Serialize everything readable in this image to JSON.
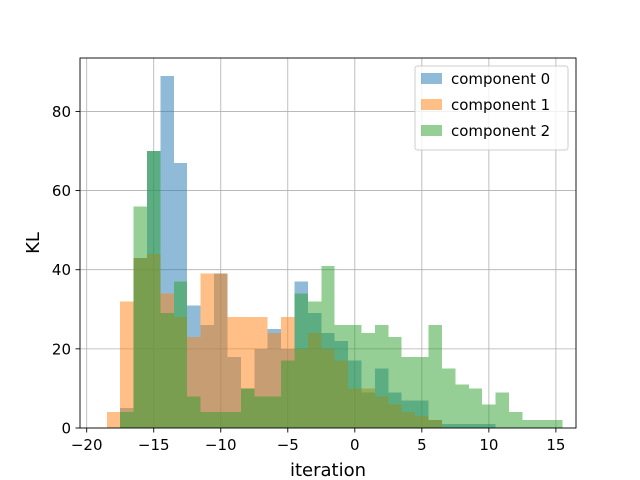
{
  "chart_data": {
    "type": "histogram",
    "title": "",
    "xlabel": "iteration",
    "ylabel": "KL",
    "xlim": [
      -20.5,
      16.5
    ],
    "ylim": [
      0,
      93.5
    ],
    "xticks": [
      -20,
      -15,
      -10,
      -5,
      0,
      5,
      10,
      15
    ],
    "xtick_labels": [
      "−20",
      "−15",
      "−10",
      "−5",
      "0",
      "5",
      "10",
      "15"
    ],
    "yticks": [
      0,
      20,
      40,
      60,
      80
    ],
    "ytick_labels": [
      "0",
      "20",
      "40",
      "60",
      "80"
    ],
    "grid": true,
    "legend_position": "top-right",
    "series": [
      {
        "name": "component 0",
        "color": "#1f77b4",
        "opacity": 0.5,
        "bins": [
          [
            -17.5,
            -16.5,
            5
          ],
          [
            -16.5,
            -15.5,
            43
          ],
          [
            -15.5,
            -14.5,
            70
          ],
          [
            -14.5,
            -13.5,
            89
          ],
          [
            -13.5,
            -12.5,
            67
          ],
          [
            -12.5,
            -11.5,
            31
          ],
          [
            -11.5,
            -10.5,
            26
          ],
          [
            -10.5,
            -9.5,
            39
          ],
          [
            -9.5,
            -8.5,
            18
          ],
          [
            -8.5,
            -7.5,
            10
          ],
          [
            -7.5,
            -6.5,
            20
          ],
          [
            -6.5,
            -5.5,
            25
          ],
          [
            -5.5,
            -4.5,
            20
          ],
          [
            -4.5,
            -3.5,
            37
          ],
          [
            -3.5,
            -2.5,
            29
          ],
          [
            -2.5,
            -1.5,
            24
          ],
          [
            -1.5,
            -0.5,
            22
          ],
          [
            -0.5,
            0.5,
            17
          ],
          [
            0.5,
            1.5,
            9
          ],
          [
            1.5,
            2.5,
            15
          ],
          [
            2.5,
            3.5,
            9
          ],
          [
            3.5,
            4.5,
            7
          ],
          [
            4.5,
            5.5,
            7
          ],
          [
            5.5,
            6.5,
            2
          ],
          [
            6.5,
            7.5,
            1
          ],
          [
            7.5,
            8.5,
            1
          ],
          [
            8.5,
            9.5,
            1
          ],
          [
            9.5,
            10.5,
            1
          ]
        ]
      },
      {
        "name": "component 1",
        "color": "#ff7f0e",
        "opacity": 0.5,
        "bins": [
          [
            -18.5,
            -17.5,
            4
          ],
          [
            -17.5,
            -16.5,
            32
          ],
          [
            -16.5,
            -15.5,
            43
          ],
          [
            -15.5,
            -14.5,
            44
          ],
          [
            -14.5,
            -13.5,
            34
          ],
          [
            -13.5,
            -12.5,
            28
          ],
          [
            -12.5,
            -11.5,
            23
          ],
          [
            -11.5,
            -10.5,
            39
          ],
          [
            -10.5,
            -9.5,
            39
          ],
          [
            -9.5,
            -8.5,
            28
          ],
          [
            -8.5,
            -7.5,
            28
          ],
          [
            -7.5,
            -6.5,
            28
          ],
          [
            -6.5,
            -5.5,
            24
          ],
          [
            -5.5,
            -4.5,
            28
          ],
          [
            -4.5,
            -3.5,
            20
          ],
          [
            -3.5,
            -2.5,
            24
          ],
          [
            -2.5,
            -1.5,
            20
          ],
          [
            -1.5,
            -0.5,
            17
          ],
          [
            -0.5,
            0.5,
            10
          ],
          [
            0.5,
            1.5,
            10
          ],
          [
            1.5,
            2.5,
            8
          ],
          [
            2.5,
            3.5,
            6
          ],
          [
            3.5,
            4.5,
            4
          ],
          [
            4.5,
            5.5,
            3
          ],
          [
            5.5,
            6.5,
            2
          ]
        ]
      },
      {
        "name": "component 2",
        "color": "#2ca02c",
        "opacity": 0.5,
        "bins": [
          [
            -17.5,
            -16.5,
            4
          ],
          [
            -16.5,
            -15.5,
            56
          ],
          [
            -15.5,
            -14.5,
            70
          ],
          [
            -14.5,
            -13.5,
            29
          ],
          [
            -13.5,
            -12.5,
            37
          ],
          [
            -12.5,
            -11.5,
            8
          ],
          [
            -11.5,
            -10.5,
            4
          ],
          [
            -10.5,
            -9.5,
            4
          ],
          [
            -9.5,
            -8.5,
            4
          ],
          [
            -8.5,
            -7.5,
            10
          ],
          [
            -7.5,
            -6.5,
            8
          ],
          [
            -6.5,
            -5.5,
            8
          ],
          [
            -5.5,
            -4.5,
            17
          ],
          [
            -4.5,
            -3.5,
            34
          ],
          [
            -3.5,
            -2.5,
            32
          ],
          [
            -2.5,
            -1.5,
            41
          ],
          [
            -1.5,
            -0.5,
            26
          ],
          [
            -0.5,
            0.5,
            26
          ],
          [
            0.5,
            1.5,
            24
          ],
          [
            1.5,
            2.5,
            26
          ],
          [
            2.5,
            3.5,
            23
          ],
          [
            3.5,
            4.5,
            18
          ],
          [
            4.5,
            5.5,
            18
          ],
          [
            5.5,
            6.5,
            26
          ],
          [
            6.5,
            7.5,
            15
          ],
          [
            7.5,
            8.5,
            11
          ],
          [
            8.5,
            9.5,
            10
          ],
          [
            9.5,
            10.5,
            6
          ],
          [
            10.5,
            11.5,
            9
          ],
          [
            11.5,
            12.5,
            4
          ],
          [
            12.5,
            13.5,
            2
          ],
          [
            13.5,
            14.5,
            2
          ],
          [
            14.5,
            15.5,
            2
          ]
        ]
      }
    ]
  }
}
